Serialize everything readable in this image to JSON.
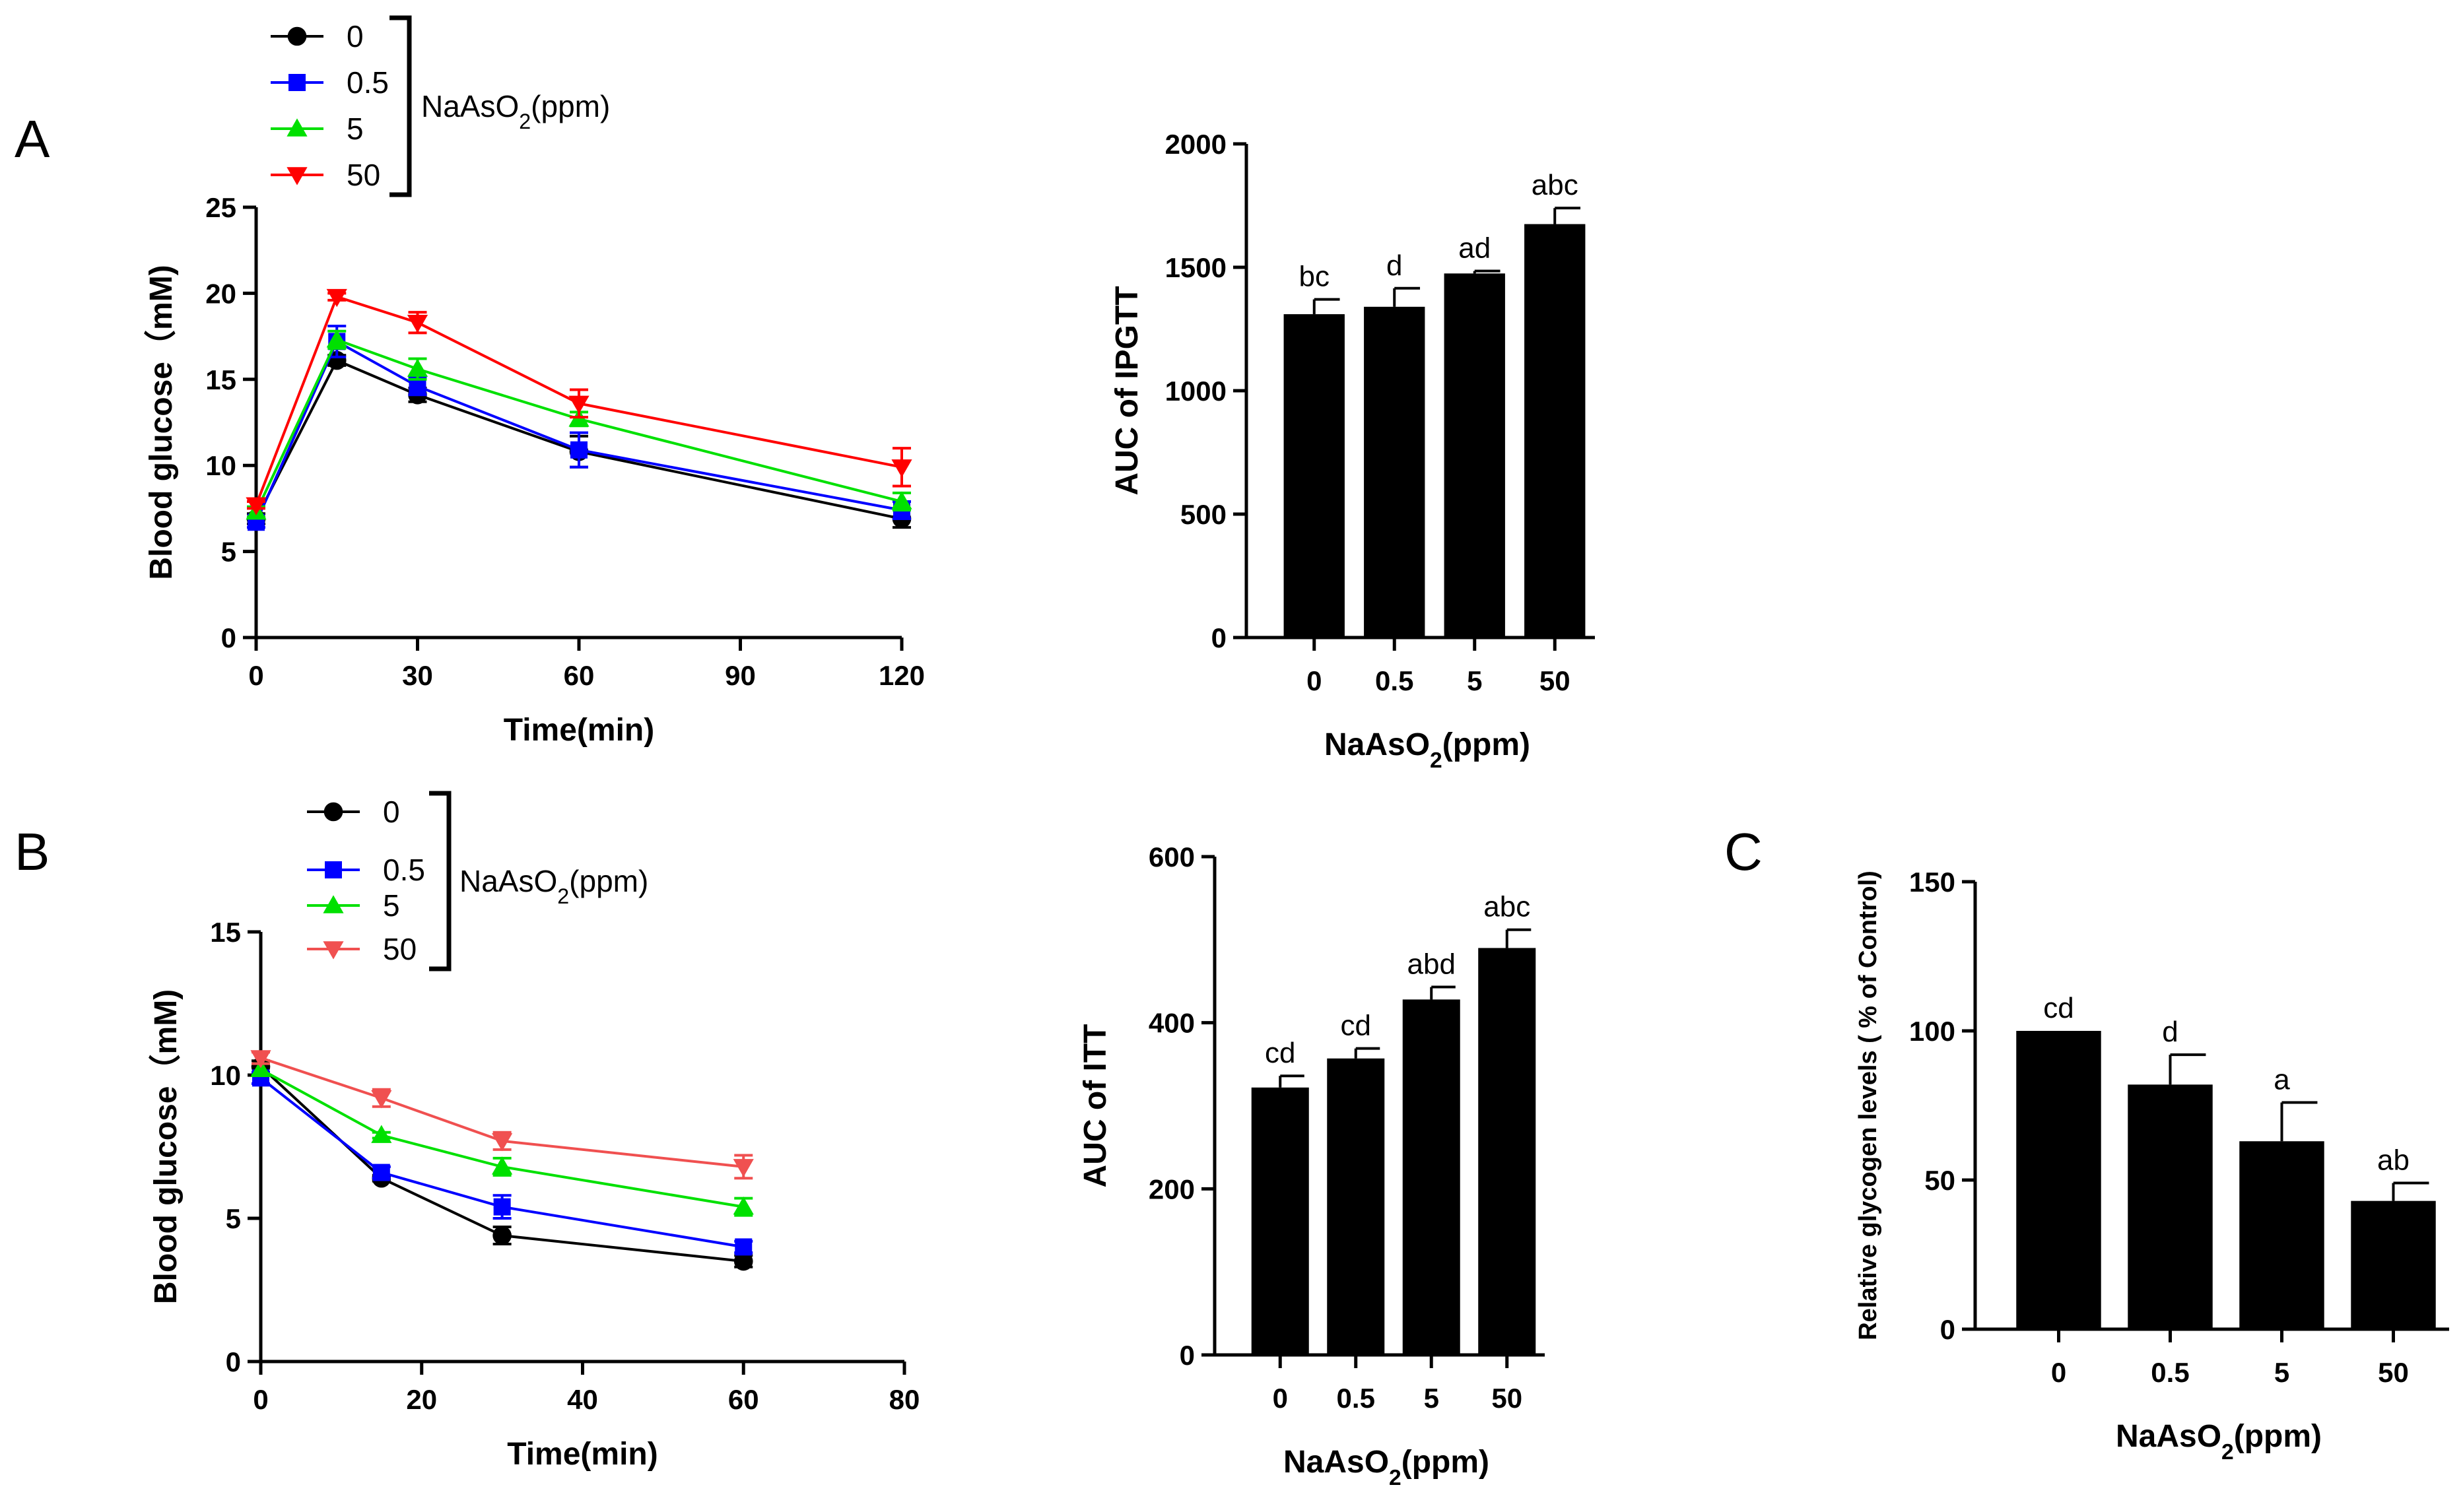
{
  "panels": {
    "A": {
      "letter": "A"
    },
    "B": {
      "letter": "B"
    },
    "C": {
      "letter": "C"
    }
  },
  "chart_data": [
    {
      "id": "A-line",
      "type": "line",
      "panel": "A",
      "xlabel": "Time(min)",
      "ylabel": "Blood glucose（mM)",
      "xlim": [
        0,
        120
      ],
      "ylim": [
        0,
        25
      ],
      "xticks": [
        0,
        30,
        60,
        90,
        120
      ],
      "yticks": [
        0,
        5,
        10,
        15,
        20,
        25
      ],
      "legend_title": "NaAsO₂(ppm)",
      "legend_position": "top-left",
      "series": [
        {
          "name": "0",
          "color": "#000000",
          "marker": "circle",
          "x": [
            0,
            15,
            30,
            60,
            120
          ],
          "y": [
            6.9,
            16.1,
            14.1,
            10.8,
            6.9
          ],
          "err": [
            0.3,
            0.3,
            0.4,
            0.9,
            0.5
          ]
        },
        {
          "name": "0.5",
          "color": "#0000FF",
          "marker": "square",
          "x": [
            0,
            15,
            30,
            60,
            120
          ],
          "y": [
            6.7,
            17.2,
            14.6,
            10.9,
            7.4
          ],
          "err": [
            0.3,
            0.9,
            0.5,
            1.0,
            0.5
          ]
        },
        {
          "name": "5",
          "color": "#00E000",
          "marker": "triangle-up",
          "x": [
            0,
            15,
            30,
            60,
            120
          ],
          "y": [
            7.3,
            17.3,
            15.6,
            12.7,
            7.9
          ],
          "err": [
            0.3,
            0.5,
            0.6,
            0.4,
            0.5
          ]
        },
        {
          "name": "50",
          "color": "#FF0000",
          "marker": "triangle-down",
          "x": [
            0,
            15,
            30,
            60,
            120
          ],
          "y": [
            7.7,
            19.8,
            18.3,
            13.6,
            9.9
          ],
          "err": [
            0.2,
            0.2,
            0.6,
            0.8,
            1.1
          ]
        }
      ]
    },
    {
      "id": "A-bar",
      "type": "bar",
      "panel": "A",
      "xlabel": "NaAsO₂(ppm)",
      "ylabel": "AUC of IPGTT",
      "ylim": [
        0,
        2000
      ],
      "yticks": [
        0,
        500,
        1000,
        1500,
        2000
      ],
      "categories": [
        "0",
        "0.5",
        "5",
        "50"
      ],
      "values": [
        1310,
        1340,
        1475,
        1675
      ],
      "err": [
        60,
        75,
        10,
        65
      ],
      "labels": [
        "bc",
        "d",
        "ad",
        "abc"
      ]
    },
    {
      "id": "B-line",
      "type": "line",
      "panel": "B",
      "xlabel": "Time(min)",
      "ylabel": "Blood glucose（mM)",
      "xlim": [
        0,
        80
      ],
      "ylim": [
        0,
        15
      ],
      "xticks": [
        0,
        20,
        40,
        60,
        80
      ],
      "yticks": [
        0,
        5,
        10,
        15
      ],
      "legend_title": "NaAsO₂(ppm)",
      "legend_position": "top-left",
      "series": [
        {
          "name": "0",
          "color": "#000000",
          "marker": "circle",
          "x": [
            0,
            15,
            30,
            60
          ],
          "y": [
            10.3,
            6.4,
            4.4,
            3.5
          ],
          "err": [
            0.2,
            0.1,
            0.3,
            0.2
          ]
        },
        {
          "name": "0.5",
          "color": "#0000FF",
          "marker": "square",
          "x": [
            0,
            15,
            30,
            60
          ],
          "y": [
            9.9,
            6.6,
            5.4,
            4.0
          ],
          "err": [
            0.2,
            0.2,
            0.4,
            0.2
          ]
        },
        {
          "name": "5",
          "color": "#00E000",
          "marker": "triangle-up",
          "x": [
            0,
            15,
            30,
            60
          ],
          "y": [
            10.2,
            7.9,
            6.8,
            5.4
          ],
          "err": [
            0.2,
            0.1,
            0.3,
            0.3
          ]
        },
        {
          "name": "50",
          "color": "#F05050",
          "marker": "triangle-down",
          "x": [
            0,
            15,
            30,
            60
          ],
          "y": [
            10.6,
            9.2,
            7.7,
            6.8
          ],
          "err": [
            0.2,
            0.3,
            0.3,
            0.4
          ]
        }
      ]
    },
    {
      "id": "B-bar",
      "type": "bar",
      "panel": "B",
      "xlabel": "NaAsO₂(ppm)",
      "ylabel": "AUC of ITT",
      "ylim": [
        0,
        600
      ],
      "yticks": [
        0,
        200,
        400,
        600
      ],
      "categories": [
        "0",
        "0.5",
        "5",
        "50"
      ],
      "values": [
        322,
        357,
        428,
        490
      ],
      "err": [
        14,
        12,
        15,
        22
      ],
      "labels": [
        "cd",
        "cd",
        "abd",
        "abc"
      ]
    },
    {
      "id": "C-bar",
      "type": "bar",
      "panel": "C",
      "xlabel": "NaAsO₂(ppm)",
      "ylabel": "Relative glycogen levels ( % of Control)",
      "ylim": [
        0,
        150
      ],
      "yticks": [
        0,
        50,
        100,
        150
      ],
      "categories": [
        "0",
        "0.5",
        "5",
        "50"
      ],
      "values": [
        100,
        82,
        63,
        43
      ],
      "err": [
        0,
        10,
        13,
        6
      ],
      "labels": [
        "cd",
        "d",
        "a",
        "ab"
      ]
    }
  ]
}
